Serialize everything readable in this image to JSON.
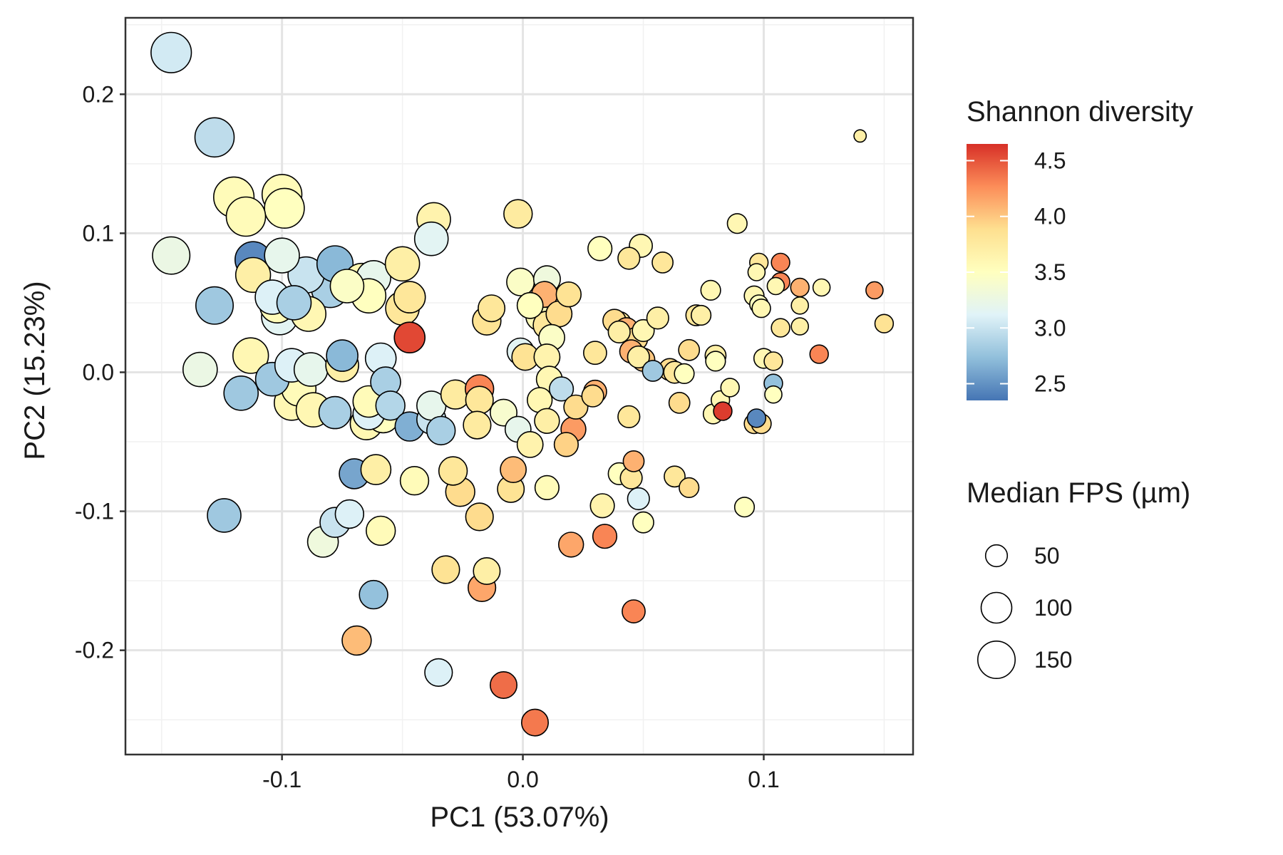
{
  "chart_data": {
    "type": "scatter",
    "title": "",
    "xlabel": "PC1 (53.07%)",
    "ylabel": "PC2 (15.23%)",
    "xlim": [
      -0.165,
      0.162
    ],
    "ylim": [
      -0.275,
      0.255
    ],
    "x_ticks": [
      -0.1,
      0.0,
      0.1
    ],
    "x_tick_labels": [
      "-0.1",
      "0.0",
      "0.1"
    ],
    "y_ticks": [
      -0.2,
      -0.1,
      0.0,
      0.1,
      0.2
    ],
    "y_tick_labels": [
      "-0.2",
      "-0.1",
      "0.0",
      "0.1",
      "0.2"
    ],
    "grid": true,
    "legend_placement": "right",
    "color": {
      "legend_title": "Shannon diversity",
      "ticks": [
        2.5,
        3.0,
        3.5,
        4.0,
        4.5
      ],
      "tick_labels": [
        "2.5",
        "3.0",
        "3.5",
        "4.0",
        "4.5"
      ],
      "range": [
        2.35,
        4.65
      ],
      "palette": [
        "#4575b4",
        "#91bfdb",
        "#e0f3f8",
        "#ffffbf",
        "#fee090",
        "#fc8d59",
        "#d73027"
      ]
    },
    "size": {
      "legend_title": "Median FPS (µm)",
      "values": [
        50,
        100,
        150
      ],
      "labels": [
        "50",
        "100",
        "150"
      ]
    },
    "points": [
      {
        "x": -0.146,
        "y": 0.23,
        "fps": 175,
        "h": 3.05
      },
      {
        "x": -0.128,
        "y": 0.169,
        "fps": 165,
        "h": 2.95
      },
      {
        "x": -0.146,
        "y": 0.084,
        "fps": 150,
        "h": 3.25
      },
      {
        "x": -0.12,
        "y": 0.126,
        "fps": 175,
        "h": 3.55
      },
      {
        "x": -0.115,
        "y": 0.112,
        "fps": 165,
        "h": 3.55
      },
      {
        "x": -0.1,
        "y": 0.128,
        "fps": 170,
        "h": 3.55
      },
      {
        "x": -0.099,
        "y": 0.118,
        "fps": 170,
        "h": 3.5
      },
      {
        "x": -0.128,
        "y": 0.048,
        "fps": 150,
        "h": 2.8
      },
      {
        "x": -0.112,
        "y": 0.081,
        "fps": 140,
        "h": 2.45
      },
      {
        "x": -0.112,
        "y": 0.07,
        "fps": 130,
        "h": 3.7
      },
      {
        "x": -0.1,
        "y": 0.084,
        "fps": 130,
        "h": 3.2
      },
      {
        "x": -0.104,
        "y": 0.054,
        "fps": 125,
        "h": 3.1
      },
      {
        "x": -0.102,
        "y": 0.048,
        "fps": 130,
        "h": 3.55
      },
      {
        "x": -0.101,
        "y": 0.04,
        "fps": 140,
        "h": 3.15
      },
      {
        "x": -0.09,
        "y": 0.07,
        "fps": 140,
        "h": 3.0
      },
      {
        "x": -0.095,
        "y": 0.05,
        "fps": 125,
        "h": 2.85
      },
      {
        "x": -0.089,
        "y": 0.042,
        "fps": 130,
        "h": 3.6
      },
      {
        "x": -0.078,
        "y": 0.078,
        "fps": 140,
        "h": 2.7
      },
      {
        "x": -0.08,
        "y": 0.06,
        "fps": 150,
        "h": 2.85
      },
      {
        "x": -0.073,
        "y": 0.062,
        "fps": 120,
        "h": 3.45
      },
      {
        "x": -0.067,
        "y": 0.066,
        "fps": 125,
        "h": 3.6
      },
      {
        "x": -0.062,
        "y": 0.068,
        "fps": 125,
        "h": 3.2
      },
      {
        "x": -0.064,
        "y": 0.055,
        "fps": 125,
        "h": 3.5
      },
      {
        "x": -0.05,
        "y": 0.078,
        "fps": 125,
        "h": 3.7
      },
      {
        "x": -0.037,
        "y": 0.11,
        "fps": 120,
        "h": 3.65
      },
      {
        "x": -0.038,
        "y": 0.096,
        "fps": 120,
        "h": 3.15
      },
      {
        "x": -0.047,
        "y": 0.054,
        "fps": 105,
        "h": 3.8
      },
      {
        "x": -0.05,
        "y": 0.046,
        "fps": 120,
        "h": 3.8
      },
      {
        "x": -0.047,
        "y": 0.025,
        "fps": 100,
        "h": 4.55
      },
      {
        "x": -0.134,
        "y": 0.002,
        "fps": 125,
        "h": 3.25
      },
      {
        "x": -0.117,
        "y": -0.015,
        "fps": 125,
        "h": 2.8
      },
      {
        "x": -0.113,
        "y": 0.012,
        "fps": 135,
        "h": 3.6
      },
      {
        "x": -0.104,
        "y": -0.005,
        "fps": 120,
        "h": 2.8
      },
      {
        "x": -0.096,
        "y": 0.005,
        "fps": 120,
        "h": 3.1
      },
      {
        "x": -0.093,
        "y": -0.012,
        "fps": 125,
        "h": 3.55
      },
      {
        "x": -0.096,
        "y": -0.022,
        "fps": 130,
        "h": 3.6
      },
      {
        "x": -0.088,
        "y": 0.002,
        "fps": 120,
        "h": 3.2
      },
      {
        "x": -0.087,
        "y": -0.027,
        "fps": 125,
        "h": 3.6
      },
      {
        "x": -0.078,
        "y": -0.029,
        "fps": 110,
        "h": 2.85
      },
      {
        "x": -0.075,
        "y": 0.005,
        "fps": 115,
        "h": 3.7
      },
      {
        "x": -0.075,
        "y": 0.012,
        "fps": 105,
        "h": 2.7
      },
      {
        "x": -0.064,
        "y": -0.03,
        "fps": 105,
        "h": 3.1
      },
      {
        "x": -0.065,
        "y": -0.037,
        "fps": 110,
        "h": 3.6
      },
      {
        "x": -0.064,
        "y": -0.021,
        "fps": 105,
        "h": 3.55
      },
      {
        "x": -0.058,
        "y": -0.032,
        "fps": 110,
        "h": 3.5
      },
      {
        "x": -0.059,
        "y": 0.01,
        "fps": 100,
        "h": 3.1
      },
      {
        "x": -0.057,
        "y": -0.007,
        "fps": 95,
        "h": 2.85
      },
      {
        "x": -0.055,
        "y": -0.024,
        "fps": 90,
        "h": 2.9
      },
      {
        "x": -0.047,
        "y": -0.039,
        "fps": 90,
        "h": 2.65
      },
      {
        "x": -0.038,
        "y": -0.034,
        "fps": 90,
        "h": 3.0
      },
      {
        "x": -0.038,
        "y": -0.024,
        "fps": 90,
        "h": 3.2
      },
      {
        "x": -0.034,
        "y": -0.042,
        "fps": 85,
        "h": 2.85
      },
      {
        "x": -0.028,
        "y": -0.016,
        "fps": 90,
        "h": 3.75
      },
      {
        "x": -0.07,
        "y": -0.073,
        "fps": 95,
        "h": 2.6
      },
      {
        "x": -0.061,
        "y": -0.07,
        "fps": 95,
        "h": 3.7
      },
      {
        "x": -0.078,
        "y": -0.108,
        "fps": 95,
        "h": 3.0
      },
      {
        "x": -0.072,
        "y": -0.102,
        "fps": 85,
        "h": 3.1
      },
      {
        "x": -0.083,
        "y": -0.122,
        "fps": 100,
        "h": 3.3
      },
      {
        "x": -0.059,
        "y": -0.114,
        "fps": 90,
        "h": 3.55
      },
      {
        "x": -0.045,
        "y": -0.078,
        "fps": 85,
        "h": 3.55
      },
      {
        "x": -0.029,
        "y": -0.071,
        "fps": 85,
        "h": 3.8
      },
      {
        "x": -0.026,
        "y": -0.086,
        "fps": 90,
        "h": 3.9
      },
      {
        "x": -0.018,
        "y": -0.104,
        "fps": 80,
        "h": 3.9
      },
      {
        "x": -0.032,
        "y": -0.142,
        "fps": 80,
        "h": 3.85
      },
      {
        "x": -0.015,
        "y": -0.143,
        "fps": 75,
        "h": 3.7
      },
      {
        "x": -0.017,
        "y": -0.155,
        "fps": 80,
        "h": 4.15
      },
      {
        "x": -0.124,
        "y": -0.103,
        "fps": 120,
        "h": 2.8
      },
      {
        "x": -0.062,
        "y": -0.16,
        "fps": 85,
        "h": 2.75
      },
      {
        "x": -0.069,
        "y": -0.193,
        "fps": 90,
        "h": 4.05
      },
      {
        "x": -0.035,
        "y": -0.216,
        "fps": 80,
        "h": 3.1
      },
      {
        "x": -0.008,
        "y": -0.225,
        "fps": 75,
        "h": 4.4
      },
      {
        "x": 0.005,
        "y": -0.252,
        "fps": 75,
        "h": 4.35
      },
      {
        "x": -0.018,
        "y": -0.012,
        "fps": 85,
        "h": 4.3
      },
      {
        "x": -0.013,
        "y": 0.046,
        "fps": 75,
        "h": 3.8
      },
      {
        "x": -0.015,
        "y": 0.037,
        "fps": 85,
        "h": 3.85
      },
      {
        "x": -0.002,
        "y": 0.114,
        "fps": 85,
        "h": 3.75
      },
      {
        "x": -0.001,
        "y": 0.065,
        "fps": 80,
        "h": 3.45
      },
      {
        "x": 0.01,
        "y": 0.067,
        "fps": 75,
        "h": 3.3
      },
      {
        "x": 0.009,
        "y": 0.056,
        "fps": 70,
        "h": 4.1
      },
      {
        "x": 0.003,
        "y": 0.048,
        "fps": 70,
        "h": 3.5
      },
      {
        "x": 0.007,
        "y": 0.04,
        "fps": 80,
        "h": 3.55
      },
      {
        "x": 0.01,
        "y": 0.034,
        "fps": 80,
        "h": 3.8
      },
      {
        "x": 0.015,
        "y": 0.042,
        "fps": 70,
        "h": 3.9
      },
      {
        "x": 0.019,
        "y": 0.056,
        "fps": 65,
        "h": 3.85
      },
      {
        "x": 0.012,
        "y": 0.025,
        "fps": 70,
        "h": 3.45
      },
      {
        "x": -0.001,
        "y": 0.015,
        "fps": 75,
        "h": 3.15
      },
      {
        "x": 0.001,
        "y": 0.011,
        "fps": 75,
        "h": 3.85
      },
      {
        "x": 0.01,
        "y": 0.011,
        "fps": 70,
        "h": 3.65
      },
      {
        "x": 0.011,
        "y": -0.005,
        "fps": 70,
        "h": 3.6
      },
      {
        "x": 0.016,
        "y": -0.012,
        "fps": 60,
        "h": 2.95
      },
      {
        "x": -0.018,
        "y": -0.02,
        "fps": 80,
        "h": 3.8
      },
      {
        "x": -0.008,
        "y": -0.029,
        "fps": 75,
        "h": 3.4
      },
      {
        "x": -0.002,
        "y": -0.041,
        "fps": 70,
        "h": 3.2
      },
      {
        "x": -0.019,
        "y": -0.038,
        "fps": 80,
        "h": 3.75
      },
      {
        "x": 0.003,
        "y": -0.052,
        "fps": 70,
        "h": 3.65
      },
      {
        "x": 0.007,
        "y": -0.02,
        "fps": 65,
        "h": 3.6
      },
      {
        "x": 0.01,
        "y": -0.035,
        "fps": 65,
        "h": 3.7
      },
      {
        "x": 0.022,
        "y": -0.025,
        "fps": 60,
        "h": 3.9
      },
      {
        "x": 0.021,
        "y": -0.041,
        "fps": 65,
        "h": 4.2
      },
      {
        "x": 0.018,
        "y": -0.052,
        "fps": 60,
        "h": 3.95
      },
      {
        "x": -0.004,
        "y": -0.07,
        "fps": 70,
        "h": 4.05
      },
      {
        "x": -0.005,
        "y": -0.084,
        "fps": 75,
        "h": 3.85
      },
      {
        "x": 0.01,
        "y": -0.083,
        "fps": 60,
        "h": 3.55
      },
      {
        "x": 0.02,
        "y": -0.124,
        "fps": 65,
        "h": 4.15
      },
      {
        "x": 0.034,
        "y": -0.118,
        "fps": 60,
        "h": 4.3
      },
      {
        "x": 0.033,
        "y": -0.096,
        "fps": 60,
        "h": 3.65
      },
      {
        "x": 0.046,
        "y": -0.172,
        "fps": 55,
        "h": 4.3
      },
      {
        "x": 0.032,
        "y": 0.089,
        "fps": 60,
        "h": 3.5
      },
      {
        "x": 0.049,
        "y": 0.091,
        "fps": 55,
        "h": 3.6
      },
      {
        "x": 0.044,
        "y": 0.082,
        "fps": 50,
        "h": 3.8
      },
      {
        "x": 0.058,
        "y": 0.079,
        "fps": 45,
        "h": 3.8
      },
      {
        "x": 0.038,
        "y": 0.037,
        "fps": 55,
        "h": 3.9
      },
      {
        "x": 0.04,
        "y": 0.035,
        "fps": 60,
        "h": 3.8
      },
      {
        "x": 0.043,
        "y": 0.031,
        "fps": 55,
        "h": 4.1
      },
      {
        "x": 0.04,
        "y": 0.029,
        "fps": 50,
        "h": 3.7
      },
      {
        "x": 0.047,
        "y": 0.024,
        "fps": 55,
        "h": 3.9
      },
      {
        "x": 0.05,
        "y": 0.03,
        "fps": 50,
        "h": 3.6
      },
      {
        "x": 0.045,
        "y": 0.015,
        "fps": 55,
        "h": 4.1
      },
      {
        "x": 0.048,
        "y": 0.011,
        "fps": 50,
        "h": 3.7
      },
      {
        "x": 0.05,
        "y": 0.009,
        "fps": 55,
        "h": 4.0
      },
      {
        "x": 0.03,
        "y": 0.014,
        "fps": 55,
        "h": 3.8
      },
      {
        "x": 0.056,
        "y": 0.039,
        "fps": 50,
        "h": 3.7
      },
      {
        "x": 0.054,
        "y": 0.001,
        "fps": 45,
        "h": 2.8
      },
      {
        "x": 0.061,
        "y": 0.002,
        "fps": 50,
        "h": 3.9
      },
      {
        "x": 0.063,
        "y": 0.0,
        "fps": 50,
        "h": 3.8
      },
      {
        "x": 0.067,
        "y": -0.001,
        "fps": 40,
        "h": 3.5
      },
      {
        "x": 0.069,
        "y": 0.016,
        "fps": 45,
        "h": 3.9
      },
      {
        "x": 0.072,
        "y": 0.041,
        "fps": 45,
        "h": 3.8
      },
      {
        "x": 0.074,
        "y": 0.041,
        "fps": 40,
        "h": 3.7
      },
      {
        "x": 0.08,
        "y": 0.012,
        "fps": 45,
        "h": 3.7
      },
      {
        "x": 0.078,
        "y": 0.059,
        "fps": 40,
        "h": 3.6
      },
      {
        "x": 0.089,
        "y": 0.107,
        "fps": 40,
        "h": 3.6
      },
      {
        "x": 0.03,
        "y": -0.014,
        "fps": 55,
        "h": 4.1
      },
      {
        "x": 0.029,
        "y": -0.017,
        "fps": 50,
        "h": 3.9
      },
      {
        "x": 0.044,
        "y": -0.032,
        "fps": 50,
        "h": 3.8
      },
      {
        "x": 0.065,
        "y": -0.022,
        "fps": 45,
        "h": 3.9
      },
      {
        "x": 0.04,
        "y": -0.073,
        "fps": 50,
        "h": 3.5
      },
      {
        "x": 0.045,
        "y": -0.076,
        "fps": 50,
        "h": 3.8
      },
      {
        "x": 0.046,
        "y": -0.064,
        "fps": 45,
        "h": 4.1
      },
      {
        "x": 0.063,
        "y": -0.075,
        "fps": 45,
        "h": 3.8
      },
      {
        "x": 0.069,
        "y": -0.083,
        "fps": 40,
        "h": 3.9
      },
      {
        "x": 0.048,
        "y": -0.091,
        "fps": 50,
        "h": 3.1
      },
      {
        "x": 0.05,
        "y": -0.108,
        "fps": 45,
        "h": 3.5
      },
      {
        "x": 0.092,
        "y": -0.097,
        "fps": 40,
        "h": 3.5
      },
      {
        "x": 0.08,
        "y": 0.008,
        "fps": 40,
        "h": 3.5
      },
      {
        "x": 0.079,
        "y": -0.03,
        "fps": 40,
        "h": 3.6
      },
      {
        "x": 0.082,
        "y": -0.02,
        "fps": 35,
        "h": 3.6
      },
      {
        "x": 0.083,
        "y": -0.028,
        "fps": 35,
        "h": 4.6
      },
      {
        "x": 0.086,
        "y": -0.011,
        "fps": 35,
        "h": 3.6
      },
      {
        "x": 0.097,
        "y": -0.033,
        "fps": 35,
        "h": 2.45
      },
      {
        "x": 0.096,
        "y": -0.037,
        "fps": 40,
        "h": 3.9
      },
      {
        "x": 0.099,
        "y": -0.037,
        "fps": 40,
        "h": 3.9
      },
      {
        "x": 0.096,
        "y": 0.055,
        "fps": 40,
        "h": 3.6
      },
      {
        "x": 0.098,
        "y": 0.049,
        "fps": 35,
        "h": 3.5
      },
      {
        "x": 0.099,
        "y": 0.046,
        "fps": 35,
        "h": 3.6
      },
      {
        "x": 0.097,
        "y": 0.072,
        "fps": 30,
        "h": 3.6
      },
      {
        "x": 0.098,
        "y": 0.079,
        "fps": 35,
        "h": 3.8
      },
      {
        "x": 0.105,
        "y": 0.062,
        "fps": 30,
        "h": 3.6
      },
      {
        "x": 0.107,
        "y": 0.065,
        "fps": 35,
        "h": 4.3
      },
      {
        "x": 0.107,
        "y": 0.079,
        "fps": 35,
        "h": 4.3
      },
      {
        "x": 0.1,
        "y": 0.01,
        "fps": 40,
        "h": 3.6
      },
      {
        "x": 0.104,
        "y": 0.008,
        "fps": 35,
        "h": 3.8
      },
      {
        "x": 0.107,
        "y": 0.032,
        "fps": 35,
        "h": 3.8
      },
      {
        "x": 0.104,
        "y": -0.008,
        "fps": 35,
        "h": 2.75
      },
      {
        "x": 0.104,
        "y": -0.016,
        "fps": 30,
        "h": 3.5
      },
      {
        "x": 0.115,
        "y": 0.033,
        "fps": 30,
        "h": 3.7
      },
      {
        "x": 0.115,
        "y": 0.048,
        "fps": 30,
        "h": 3.7
      },
      {
        "x": 0.115,
        "y": 0.061,
        "fps": 35,
        "h": 4.1
      },
      {
        "x": 0.124,
        "y": 0.061,
        "fps": 30,
        "h": 3.6
      },
      {
        "x": 0.123,
        "y": 0.013,
        "fps": 35,
        "h": 4.3
      },
      {
        "x": 0.14,
        "y": 0.17,
        "fps": 15,
        "h": 3.7
      },
      {
        "x": 0.146,
        "y": 0.059,
        "fps": 30,
        "h": 4.2
      },
      {
        "x": 0.15,
        "y": 0.035,
        "fps": 35,
        "h": 3.85
      }
    ]
  }
}
